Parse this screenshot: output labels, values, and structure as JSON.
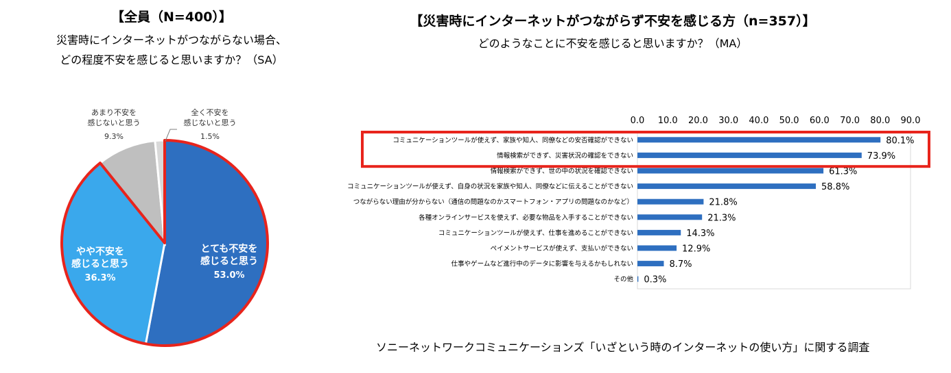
{
  "left": {
    "title": "【全員（N=400）】",
    "subtitle_line1": "災害時にインターネットがつながらない場合、",
    "subtitle_line2": "どの程度不安を感じると思いますか？（SA）"
  },
  "right": {
    "title": "【災害時にインターネットがつながらず不安を感じる方（n=357）】",
    "subtitle": "どのようなことに不安を感じると思いますか？（MA）"
  },
  "footer": "ソニーネットワークコミュニケーションズ「いざという時のインターネットの使い方」に関する調査",
  "chart_data": [
    {
      "type": "pie",
      "slices": [
        {
          "label": "とても不安を感じると思う",
          "label_lines": [
            "とても不安を",
            "感じると思う"
          ],
          "value": 53.0,
          "value_label": "53.0%",
          "color": "#2e6fc0",
          "highlight": true
        },
        {
          "label": "やや不安を感じると思う",
          "label_lines": [
            "やや不安を",
            "感じると思う"
          ],
          "value": 36.3,
          "value_label": "36.3%",
          "color": "#3aa8ec",
          "highlight": true
        },
        {
          "label": "あまり不安を感じないと思う",
          "label_lines": [
            "あまり不安を",
            "感じないと思う"
          ],
          "value": 9.3,
          "value_label": "9.3%",
          "color": "#bfbfbf",
          "highlight": false
        },
        {
          "label": "全く不安を感じないと思う",
          "label_lines": [
            "全く不安を",
            "感じないと思う"
          ],
          "value": 1.5,
          "value_label": "1.5%",
          "color": "#d9d9d9",
          "highlight": false
        }
      ],
      "highlight_color": "#e8241c"
    },
    {
      "type": "bar",
      "orientation": "horizontal",
      "xlim": [
        0,
        90
      ],
      "xticks": [
        "0.0",
        "10.0",
        "20.0",
        "30.0",
        "40.0",
        "50.0",
        "60.0",
        "70.0",
        "80.0",
        "90.0"
      ],
      "bar_color": "#2e6fc0",
      "highlight_color": "#e8241c",
      "highlight_count": 2,
      "categories": [
        "コミュニケーションツールが使えず、家族や知人、同僚などの安否確認ができない",
        "情報検索ができず、災害状況の確認をできない",
        "情報検索ができず、世の中の状況を確認できない",
        "コミュニケーションツールが使えず、自身の状況を家族や知人、同僚などに伝えることができない",
        "つながらない理由が分からない（通信の問題なのかスマートフォン・アプリの問題なのかなど）",
        "各種オンラインサービスを使えず、必要な物品を入手することができない",
        "コミュニケーションツールが使えず、仕事を進めることができない",
        "ペイメントサービスが使えず、支払いができない",
        "仕事やゲームなど進行中のデータに影響を与えるかもしれない",
        "その他"
      ],
      "values": [
        80.1,
        73.9,
        61.3,
        58.8,
        21.8,
        21.3,
        14.3,
        12.9,
        8.7,
        0.3
      ],
      "value_labels": [
        "80.1%",
        "73.9%",
        "61.3%",
        "58.8%",
        "21.8%",
        "21.3%",
        "14.3%",
        "12.9%",
        "8.7%",
        "0.3%"
      ]
    }
  ]
}
